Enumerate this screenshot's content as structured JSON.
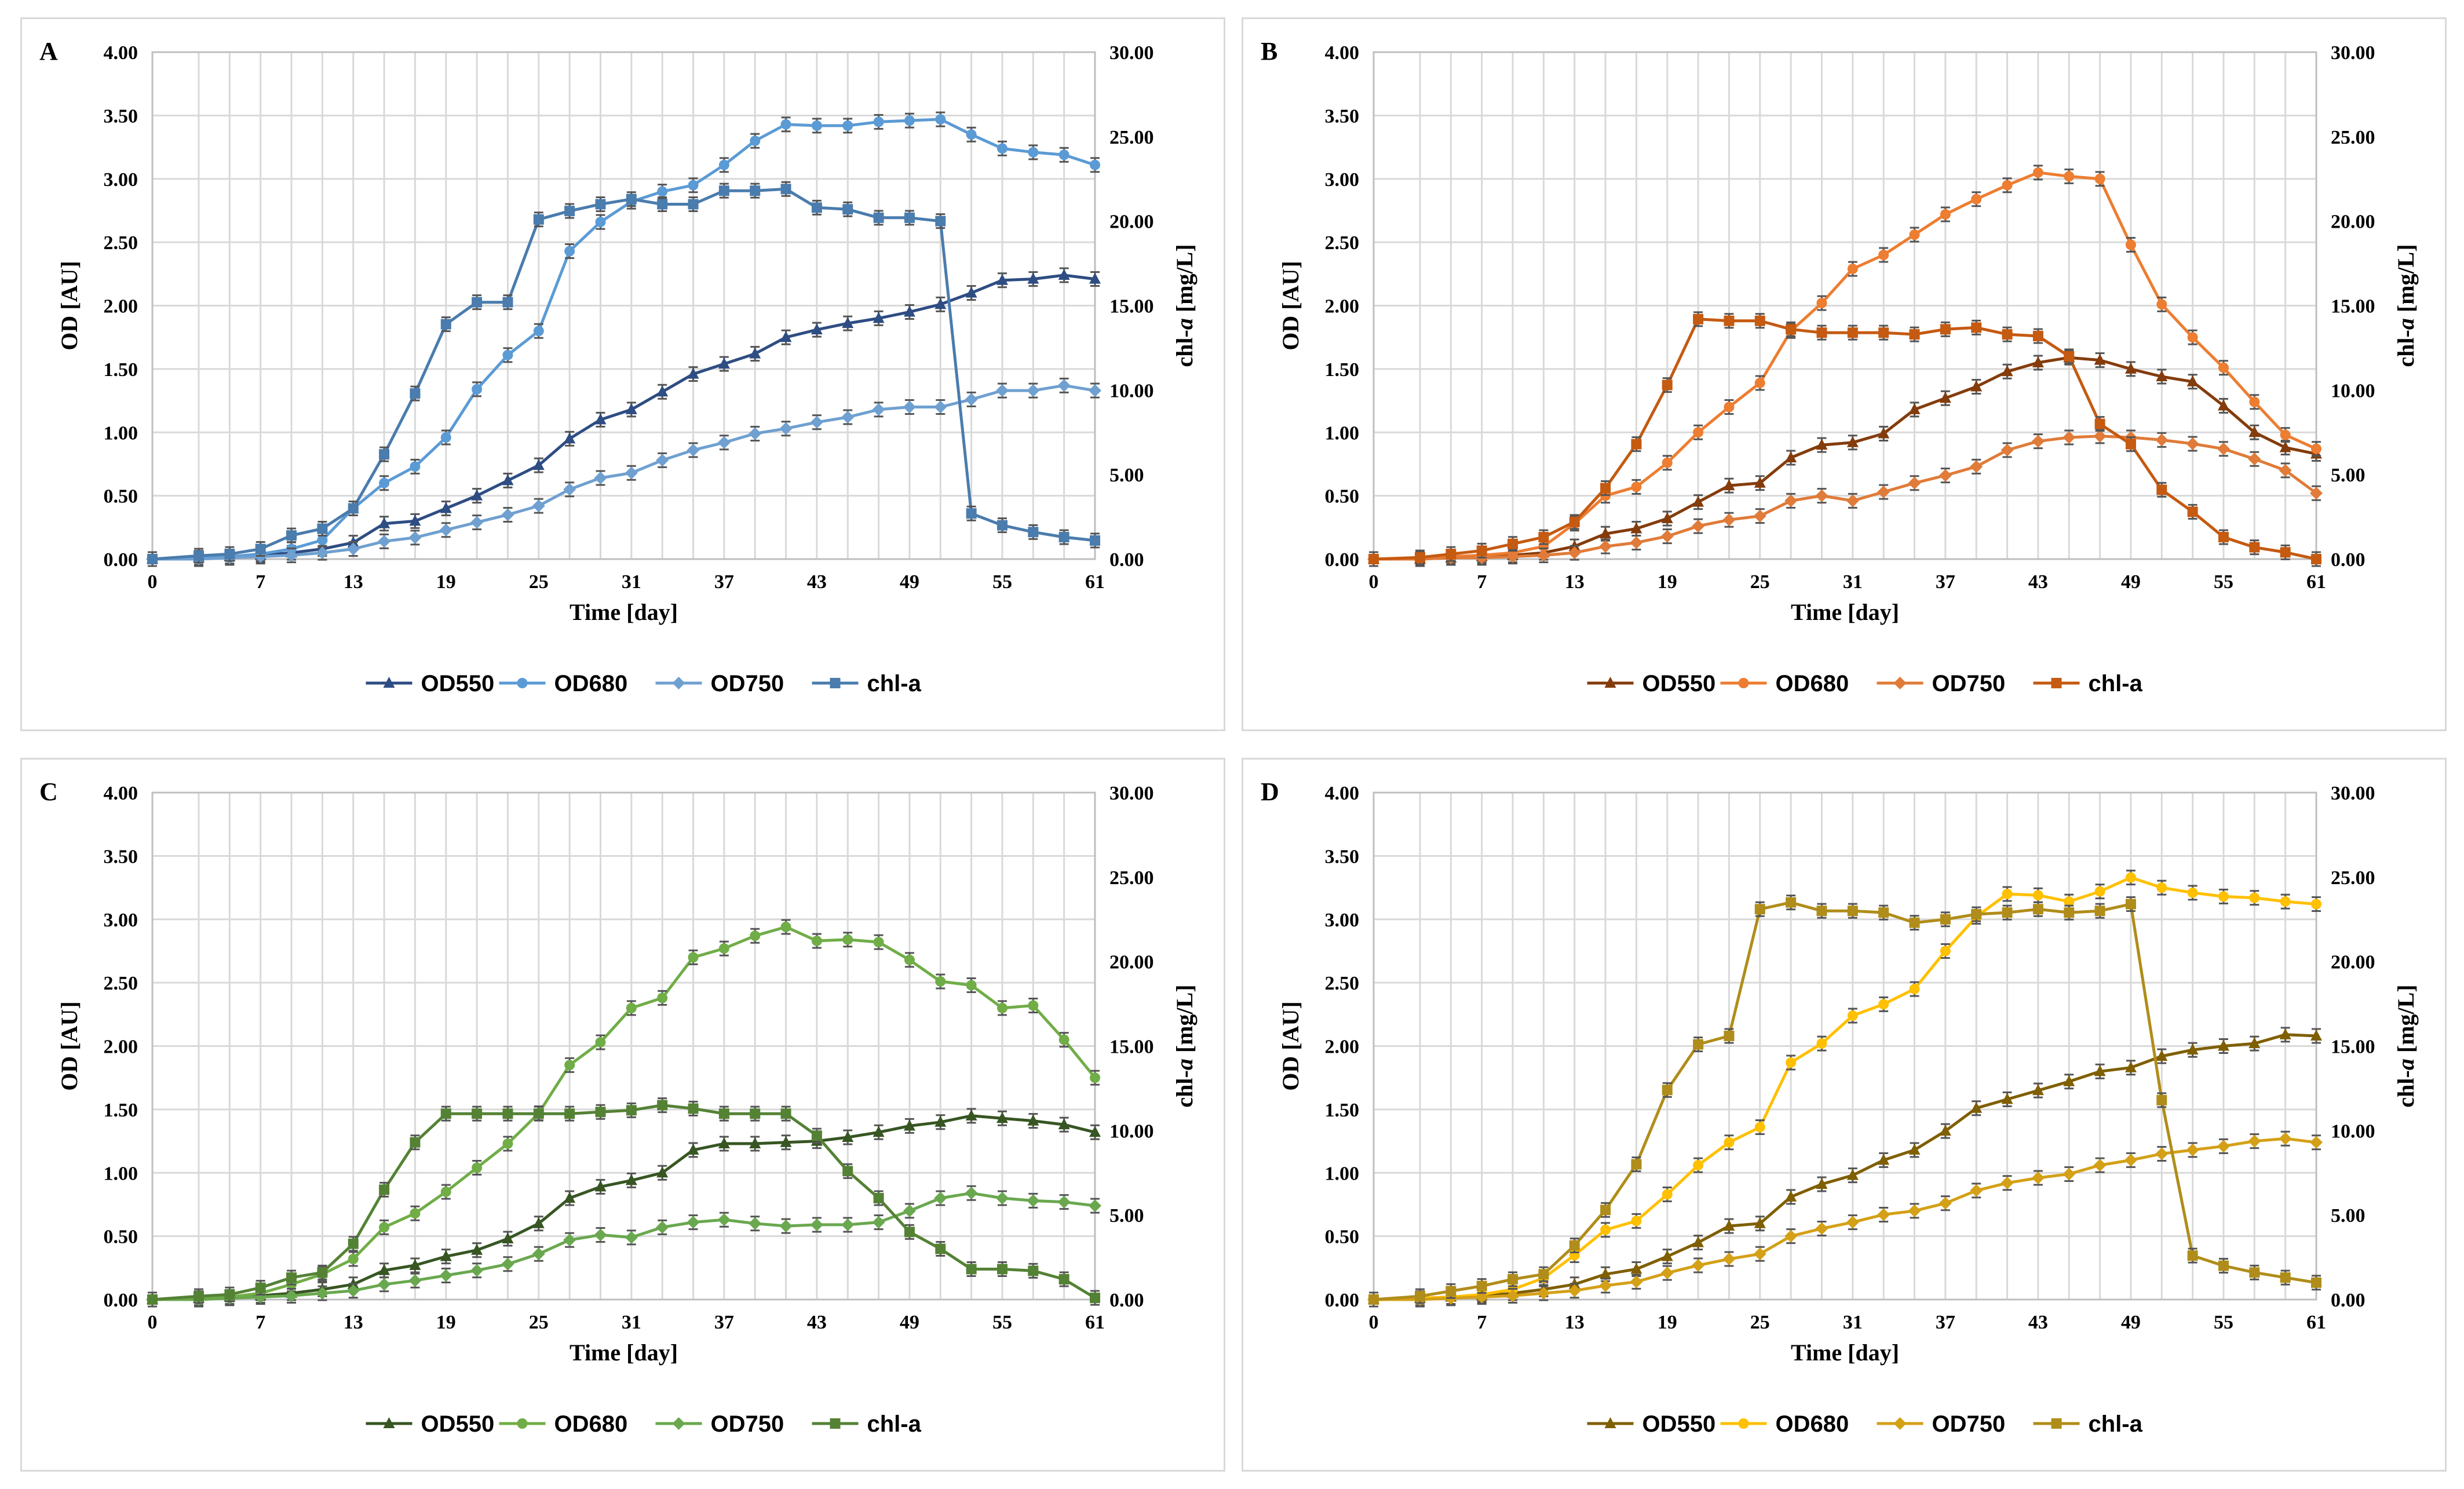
{
  "chart_data": [
    {
      "panel_label": "A",
      "type": "line",
      "xlabel": "Time [day]",
      "ylabel": "OD [AU]",
      "y2label_main": "chl-",
      "y2label_ital": "a",
      "y2label_unit": " [mg/L]",
      "x": [
        0,
        3,
        5,
        7,
        9,
        11,
        13,
        15,
        17,
        19,
        21,
        23,
        25,
        27,
        29,
        31,
        33,
        35,
        37,
        39,
        41,
        43,
        45,
        47,
        49,
        51,
        53,
        55,
        57,
        59,
        61
      ],
      "x_ticks": [
        0,
        7,
        13,
        19,
        25,
        31,
        37,
        43,
        49,
        55,
        61
      ],
      "ylim": [
        0,
        4
      ],
      "y_ticks": [
        "0.00",
        "0.50",
        "1.00",
        "1.50",
        "2.00",
        "2.50",
        "3.00",
        "3.50",
        "4.00"
      ],
      "y2lim": [
        0,
        30
      ],
      "y2_ticks": [
        "0.00",
        "5.00",
        "10.00",
        "15.00",
        "20.00",
        "25.00",
        "30.00"
      ],
      "legend": "bottom",
      "series": [
        {
          "name": "OD550",
          "axis": "left",
          "marker": "triangle",
          "color": "#2e4d83",
          "values": [
            0.0,
            0.01,
            0.02,
            0.03,
            0.05,
            0.08,
            0.13,
            0.28,
            0.3,
            0.4,
            0.5,
            0.62,
            0.74,
            0.95,
            1.1,
            1.18,
            1.32,
            1.46,
            1.54,
            1.62,
            1.75,
            1.81,
            1.86,
            1.9,
            1.95,
            2.01,
            2.1,
            2.2,
            2.21,
            2.24,
            2.21
          ]
        },
        {
          "name": "OD680",
          "axis": "left",
          "marker": "circle",
          "color": "#5b9bd5",
          "values": [
            0.0,
            0.01,
            0.02,
            0.04,
            0.08,
            0.15,
            0.4,
            0.6,
            0.73,
            0.96,
            1.34,
            1.61,
            1.8,
            2.43,
            2.66,
            2.82,
            2.9,
            2.95,
            3.11,
            3.3,
            3.43,
            3.42,
            3.42,
            3.45,
            3.46,
            3.47,
            3.35,
            3.24,
            3.21,
            3.19,
            3.11
          ]
        },
        {
          "name": "OD750",
          "axis": "left",
          "marker": "diamond",
          "color": "#6fa0d0",
          "values": [
            0.0,
            0.0,
            0.01,
            0.02,
            0.03,
            0.05,
            0.08,
            0.14,
            0.17,
            0.23,
            0.29,
            0.35,
            0.42,
            0.55,
            0.64,
            0.68,
            0.78,
            0.86,
            0.92,
            0.99,
            1.03,
            1.08,
            1.12,
            1.18,
            1.2,
            1.2,
            1.26,
            1.33,
            1.33,
            1.37,
            1.33
          ]
        },
        {
          "name": "chl-a",
          "axis": "right",
          "marker": "square",
          "color": "#4a7cad",
          "values": [
            0.0,
            0.2,
            0.3,
            0.6,
            1.4,
            1.8,
            3.0,
            6.2,
            9.8,
            13.9,
            15.2,
            15.2,
            20.1,
            20.6,
            21.0,
            21.3,
            21.0,
            21.0,
            21.8,
            21.8,
            21.9,
            20.8,
            20.7,
            20.2,
            20.2,
            20.0,
            2.7,
            2.0,
            1.6,
            1.3,
            1.1
          ]
        }
      ]
    },
    {
      "panel_label": "B",
      "type": "line",
      "xlabel": "Time [day]",
      "ylabel": "OD [AU]",
      "y2label_main": "chl-",
      "y2label_ital": "a",
      "y2label_unit": " [mg/L]",
      "x": [
        0,
        3,
        5,
        7,
        9,
        11,
        13,
        15,
        17,
        19,
        21,
        23,
        25,
        27,
        29,
        31,
        33,
        35,
        37,
        39,
        41,
        43,
        45,
        47,
        49,
        51,
        53,
        55,
        57,
        59,
        61
      ],
      "x_ticks": [
        0,
        7,
        13,
        19,
        25,
        31,
        37,
        43,
        49,
        55,
        61
      ],
      "ylim": [
        0,
        4
      ],
      "y_ticks": [
        "0.00",
        "0.50",
        "1.00",
        "1.50",
        "2.00",
        "2.50",
        "3.00",
        "3.50",
        "4.00"
      ],
      "y2lim": [
        0,
        30
      ],
      "y2_ticks": [
        "0.00",
        "5.00",
        "10.00",
        "15.00",
        "20.00",
        "25.00",
        "30.00"
      ],
      "legend": "bottom",
      "series": [
        {
          "name": "OD550",
          "axis": "left",
          "marker": "triangle",
          "color": "#843c0c",
          "values": [
            0.0,
            0.0,
            0.01,
            0.02,
            0.03,
            0.05,
            0.1,
            0.2,
            0.24,
            0.32,
            0.45,
            0.58,
            0.6,
            0.8,
            0.9,
            0.92,
            0.99,
            1.18,
            1.27,
            1.36,
            1.48,
            1.55,
            1.59,
            1.57,
            1.5,
            1.44,
            1.4,
            1.21,
            1.0,
            0.88,
            0.83
          ]
        },
        {
          "name": "OD680",
          "axis": "left",
          "marker": "circle",
          "color": "#ed7d31",
          "values": [
            0.0,
            0.01,
            0.02,
            0.03,
            0.05,
            0.1,
            0.28,
            0.5,
            0.57,
            0.76,
            1.0,
            1.2,
            1.39,
            1.8,
            2.02,
            2.29,
            2.4,
            2.56,
            2.72,
            2.84,
            2.95,
            3.05,
            3.02,
            3.0,
            2.48,
            2.01,
            1.75,
            1.51,
            1.24,
            0.98,
            0.87
          ]
        },
        {
          "name": "OD750",
          "axis": "left",
          "marker": "diamond",
          "color": "#e07b39",
          "values": [
            0.0,
            0.0,
            0.01,
            0.01,
            0.02,
            0.03,
            0.05,
            0.1,
            0.13,
            0.18,
            0.26,
            0.31,
            0.34,
            0.46,
            0.5,
            0.46,
            0.53,
            0.6,
            0.66,
            0.73,
            0.86,
            0.93,
            0.96,
            0.97,
            0.96,
            0.94,
            0.91,
            0.87,
            0.79,
            0.7,
            0.52
          ]
        },
        {
          "name": "chl-a",
          "axis": "right",
          "marker": "square",
          "color": "#c55a11",
          "values": [
            0.0,
            0.1,
            0.3,
            0.5,
            0.9,
            1.3,
            2.2,
            4.2,
            6.8,
            10.3,
            14.2,
            14.1,
            14.1,
            13.6,
            13.4,
            13.4,
            13.4,
            13.3,
            13.6,
            13.7,
            13.3,
            13.2,
            12.0,
            8.0,
            6.8,
            4.1,
            2.8,
            1.3,
            0.7,
            0.4,
            0.0
          ]
        }
      ]
    },
    {
      "panel_label": "C",
      "type": "line",
      "xlabel": "Time [day]",
      "ylabel": "OD [AU]",
      "y2label_main": "chl-",
      "y2label_ital": "a",
      "y2label_unit": " [mg/L]",
      "x": [
        0,
        3,
        5,
        7,
        9,
        11,
        13,
        15,
        17,
        19,
        21,
        23,
        25,
        27,
        29,
        31,
        33,
        35,
        37,
        39,
        41,
        43,
        45,
        47,
        49,
        51,
        53,
        55,
        57,
        59,
        61
      ],
      "x_ticks": [
        0,
        7,
        13,
        19,
        25,
        31,
        37,
        43,
        49,
        55,
        61
      ],
      "ylim": [
        0,
        4
      ],
      "y_ticks": [
        "0.00",
        "0.50",
        "1.00",
        "1.50",
        "2.00",
        "2.50",
        "3.00",
        "3.50",
        "4.00"
      ],
      "y2lim": [
        0,
        30
      ],
      "y2_ticks": [
        "0.00",
        "5.00",
        "10.00",
        "15.00",
        "20.00",
        "25.00",
        "30.00"
      ],
      "legend": "bottom",
      "series": [
        {
          "name": "OD550",
          "axis": "left",
          "marker": "triangle",
          "color": "#375623",
          "values": [
            0.0,
            0.01,
            0.02,
            0.03,
            0.05,
            0.08,
            0.12,
            0.23,
            0.27,
            0.34,
            0.39,
            0.48,
            0.6,
            0.8,
            0.89,
            0.94,
            1.0,
            1.18,
            1.23,
            1.23,
            1.24,
            1.25,
            1.28,
            1.32,
            1.37,
            1.4,
            1.45,
            1.43,
            1.41,
            1.38,
            1.32
          ]
        },
        {
          "name": "OD680",
          "axis": "left",
          "marker": "circle",
          "color": "#70ad47",
          "values": [
            0.0,
            0.01,
            0.02,
            0.05,
            0.12,
            0.2,
            0.32,
            0.57,
            0.68,
            0.85,
            1.04,
            1.23,
            1.47,
            1.85,
            2.03,
            2.3,
            2.38,
            2.7,
            2.77,
            2.87,
            2.94,
            2.83,
            2.84,
            2.82,
            2.68,
            2.51,
            2.48,
            2.3,
            2.32,
            2.05,
            1.75
          ]
        },
        {
          "name": "OD750",
          "axis": "left",
          "marker": "diamond",
          "color": "#6aa84f",
          "values": [
            0.0,
            0.0,
            0.01,
            0.02,
            0.03,
            0.05,
            0.07,
            0.12,
            0.15,
            0.19,
            0.23,
            0.28,
            0.36,
            0.47,
            0.51,
            0.49,
            0.57,
            0.61,
            0.63,
            0.6,
            0.58,
            0.59,
            0.59,
            0.61,
            0.7,
            0.8,
            0.84,
            0.8,
            0.78,
            0.77,
            0.74
          ]
        },
        {
          "name": "chl-a",
          "axis": "right",
          "marker": "square",
          "color": "#548235",
          "values": [
            0.0,
            0.2,
            0.3,
            0.7,
            1.3,
            1.6,
            3.3,
            6.5,
            9.3,
            11.0,
            11.0,
            11.0,
            11.0,
            11.0,
            11.1,
            11.2,
            11.5,
            11.3,
            11.0,
            11.0,
            11.0,
            9.7,
            7.6,
            6.0,
            4.0,
            3.0,
            1.8,
            1.8,
            1.7,
            1.2,
            0.1
          ]
        }
      ]
    },
    {
      "panel_label": "D",
      "type": "line",
      "xlabel": "Time [day]",
      "ylabel": "OD [AU]",
      "y2label_main": "chl-",
      "y2label_ital": "a",
      "y2label_unit": " [mg/L]",
      "x": [
        0,
        3,
        5,
        7,
        9,
        11,
        13,
        15,
        17,
        19,
        21,
        23,
        25,
        27,
        29,
        31,
        33,
        35,
        37,
        39,
        41,
        43,
        45,
        47,
        49,
        51,
        53,
        55,
        57,
        59,
        61
      ],
      "x_ticks": [
        0,
        7,
        13,
        19,
        25,
        31,
        37,
        43,
        49,
        55,
        61
      ],
      "ylim": [
        0,
        4
      ],
      "y_ticks": [
        "0.00",
        "0.50",
        "1.00",
        "1.50",
        "2.00",
        "2.50",
        "3.00",
        "3.50",
        "4.00"
      ],
      "y2lim": [
        0,
        30
      ],
      "y2_ticks": [
        "0.00",
        "5.00",
        "10.00",
        "15.00",
        "20.00",
        "25.00",
        "30.00"
      ],
      "legend": "bottom",
      "series": [
        {
          "name": "OD550",
          "axis": "left",
          "marker": "triangle",
          "color": "#7f5f00",
          "values": [
            0.0,
            0.01,
            0.02,
            0.03,
            0.05,
            0.08,
            0.12,
            0.2,
            0.24,
            0.34,
            0.45,
            0.58,
            0.6,
            0.81,
            0.91,
            0.98,
            1.1,
            1.18,
            1.33,
            1.51,
            1.58,
            1.65,
            1.72,
            1.8,
            1.83,
            1.92,
            1.97,
            2.0,
            2.02,
            2.09,
            2.08
          ]
        },
        {
          "name": "OD680",
          "axis": "left",
          "marker": "circle",
          "color": "#ffc000",
          "values": [
            0.0,
            0.01,
            0.02,
            0.04,
            0.08,
            0.17,
            0.35,
            0.55,
            0.62,
            0.83,
            1.06,
            1.24,
            1.36,
            1.87,
            2.02,
            2.24,
            2.33,
            2.45,
            2.75,
            3.02,
            3.2,
            3.19,
            3.14,
            3.22,
            3.33,
            3.25,
            3.21,
            3.18,
            3.17,
            3.14,
            3.12
          ]
        },
        {
          "name": "OD750",
          "axis": "left",
          "marker": "diamond",
          "color": "#d4a017",
          "values": [
            0.0,
            0.0,
            0.01,
            0.02,
            0.03,
            0.05,
            0.07,
            0.11,
            0.14,
            0.21,
            0.27,
            0.32,
            0.36,
            0.5,
            0.56,
            0.61,
            0.67,
            0.7,
            0.76,
            0.86,
            0.92,
            0.96,
            0.99,
            1.06,
            1.1,
            1.15,
            1.18,
            1.21,
            1.25,
            1.27,
            1.24
          ]
        },
        {
          "name": "chl-a",
          "axis": "right",
          "marker": "square",
          "color": "#b08d1a",
          "values": [
            0.0,
            0.2,
            0.5,
            0.8,
            1.2,
            1.5,
            3.2,
            5.3,
            8.0,
            12.4,
            15.1,
            15.6,
            23.1,
            23.5,
            23.0,
            23.0,
            22.9,
            22.3,
            22.5,
            22.8,
            22.9,
            23.1,
            22.9,
            23.0,
            23.4,
            11.8,
            2.6,
            2.0,
            1.6,
            1.3,
            1.0
          ]
        }
      ]
    }
  ]
}
